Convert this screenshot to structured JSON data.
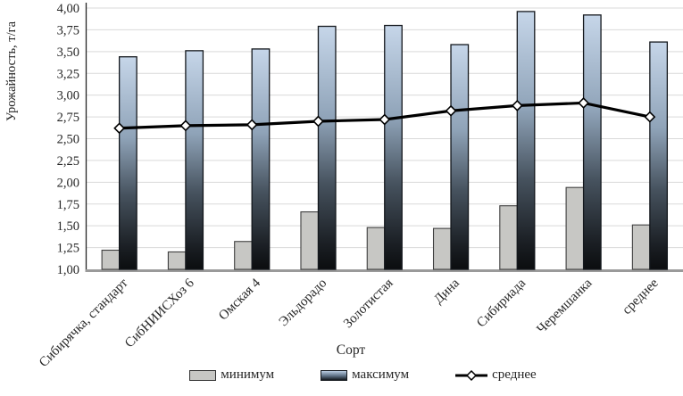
{
  "chart_data": {
    "type": "bar",
    "title": "",
    "xlabel": "Сорт",
    "ylabel": "Урожайность, т/га",
    "categories": [
      "Сибирячка, стандарт",
      "СибНИИСХоз 6",
      "Омская 4",
      "Эльдорадо",
      "Золотистая",
      "Дина",
      "Сибириада",
      "Черемшанка",
      "среднее"
    ],
    "series": [
      {
        "name": "минимум",
        "type": "bar",
        "values": [
          1.22,
          1.2,
          1.32,
          1.66,
          1.48,
          1.47,
          1.73,
          1.94,
          1.51
        ]
      },
      {
        "name": "максимум",
        "type": "bar",
        "values": [
          3.44,
          3.51,
          3.53,
          3.79,
          3.8,
          3.58,
          3.96,
          3.92,
          3.61
        ]
      },
      {
        "name": "среднее",
        "type": "line",
        "values": [
          2.62,
          2.65,
          2.66,
          2.7,
          2.72,
          2.82,
          2.88,
          2.91,
          2.75
        ]
      }
    ],
    "ylim": [
      1.0,
      4.0
    ],
    "ytick_step": 0.25,
    "ytick_labels": [
      "4,00",
      "3,75",
      "3,50",
      "3,25",
      "3,00",
      "2,75",
      "2,50",
      "2,25",
      "2,00",
      "1,75",
      "1,50",
      "1,25",
      "1,00"
    ],
    "grid": true,
    "legend_position": "bottom"
  },
  "colors": {
    "min_bar_fill": "#c7c7c4",
    "min_bar_border": "#3f3f3f",
    "max_bar_top": "#c6d6e9",
    "max_bar_upper": "#8fa3b8",
    "max_bar_mid": "#46525e",
    "max_bar_lower": "#1a1e23",
    "max_bar_bottom": "#0b0d0f",
    "max_bar_border": "#14181d",
    "line": "#000000",
    "marker_fill": "#ffffff",
    "marker_border": "#000000",
    "grid": "#d9d9d9",
    "x_axis": "#9a9a9a",
    "y_axis": "#262626",
    "text": "#262626"
  },
  "legend": {
    "items": [
      {
        "label": "минимум"
      },
      {
        "label": "максимум"
      },
      {
        "label": "среднее"
      }
    ]
  }
}
